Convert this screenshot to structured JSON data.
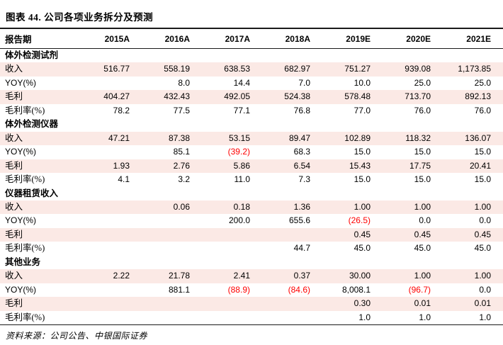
{
  "title": "图表 44. 公司各项业务拆分及预测",
  "source": "资料来源：公司公告、中银国际证券",
  "colors": {
    "stripe": "#fbe9e5",
    "negative": "#ff0000",
    "rule": "#1a1a1a"
  },
  "table": {
    "header": [
      "报告期",
      "2015A",
      "2016A",
      "2017A",
      "2018A",
      "2019E",
      "2020E",
      "2021E"
    ],
    "sections": [
      {
        "name": "体外检测试剂",
        "rows": [
          {
            "label": "收入",
            "values": [
              "516.77",
              "558.19",
              "638.53",
              "682.97",
              "751.27",
              "939.08",
              "1,173.85"
            ]
          },
          {
            "label": "YOY(%)",
            "values": [
              "",
              "8.0",
              "14.4",
              "7.0",
              "10.0",
              "25.0",
              "25.0"
            ]
          },
          {
            "label": "毛利",
            "values": [
              "404.27",
              "432.43",
              "492.05",
              "524.38",
              "578.48",
              "713.70",
              "892.13"
            ]
          },
          {
            "label": "毛利率(%)",
            "values": [
              "78.2",
              "77.5",
              "77.1",
              "76.8",
              "77.0",
              "76.0",
              "76.0"
            ]
          }
        ]
      },
      {
        "name": "体外检测仪器",
        "rows": [
          {
            "label": "收入",
            "values": [
              "47.21",
              "87.38",
              "53.15",
              "89.47",
              "102.89",
              "118.32",
              "136.07"
            ]
          },
          {
            "label": "YOY(%)",
            "values": [
              "",
              "85.1",
              "(39.2)",
              "68.3",
              "15.0",
              "15.0",
              "15.0"
            ]
          },
          {
            "label": "毛利",
            "values": [
              "1.93",
              "2.76",
              "5.86",
              "6.54",
              "15.43",
              "17.75",
              "20.41"
            ]
          },
          {
            "label": "毛利率(%)",
            "values": [
              "4.1",
              "3.2",
              "11.0",
              "7.3",
              "15.0",
              "15.0",
              "15.0"
            ]
          }
        ]
      },
      {
        "name": "仪器租赁收入",
        "rows": [
          {
            "label": "收入",
            "values": [
              "",
              "0.06",
              "0.18",
              "1.36",
              "1.00",
              "1.00",
              "1.00"
            ]
          },
          {
            "label": "YOY(%)",
            "values": [
              "",
              "",
              "200.0",
              "655.6",
              "(26.5)",
              "0.0",
              "0.0"
            ]
          },
          {
            "label": "毛利",
            "values": [
              "",
              "",
              "",
              "",
              "0.45",
              "0.45",
              "0.45"
            ]
          },
          {
            "label": "毛利率(%)",
            "values": [
              "",
              "",
              "",
              "44.7",
              "45.0",
              "45.0",
              "45.0"
            ]
          }
        ]
      },
      {
        "name": "其他业务",
        "rows": [
          {
            "label": "收入",
            "values": [
              "2.22",
              "21.78",
              "2.41",
              "0.37",
              "30.00",
              "1.00",
              "1.00"
            ]
          },
          {
            "label": "YOY(%)",
            "values": [
              "",
              "881.1",
              "(88.9)",
              "(84.6)",
              "8,008.1",
              "(96.7)",
              "0.0"
            ]
          },
          {
            "label": "毛利",
            "values": [
              "",
              "",
              "",
              "",
              "0.30",
              "0.01",
              "0.01"
            ]
          },
          {
            "label": "毛利率(%)",
            "values": [
              "",
              "",
              "",
              "",
              "1.0",
              "1.0",
              "1.0"
            ]
          }
        ]
      }
    ]
  }
}
